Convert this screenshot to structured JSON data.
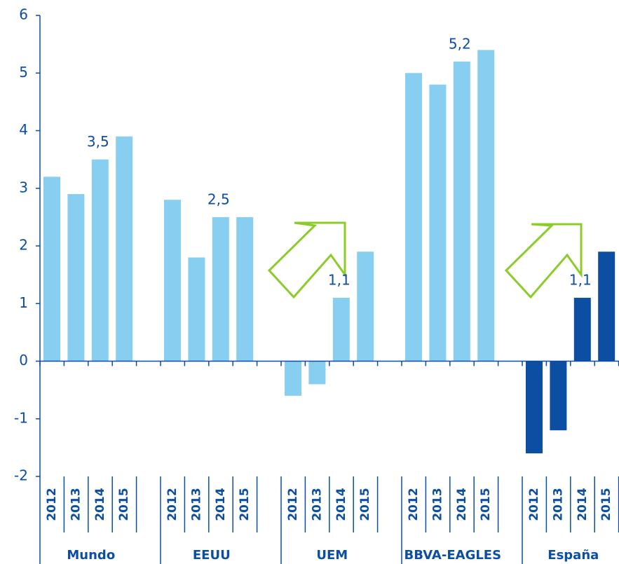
{
  "chart_data": {
    "type": "grouped_bar",
    "categories": [
      "2012",
      "2013",
      "2014",
      "2015"
    ],
    "groups": [
      {
        "name": "Mundo",
        "color": "#87cef0",
        "values": [
          3.2,
          2.9,
          3.5,
          3.9
        ],
        "value_labels": [
          null,
          null,
          "3,5",
          null
        ]
      },
      {
        "name": "EEUU",
        "color": "#87cef0",
        "values": [
          2.8,
          1.8,
          2.5,
          2.5
        ],
        "value_labels": [
          null,
          null,
          "2,5",
          null
        ]
      },
      {
        "name": "UEM",
        "color": "#87cef0",
        "values": [
          -0.6,
          -0.4,
          1.1,
          1.9
        ],
        "value_labels": [
          null,
          null,
          "1,1",
          null
        ]
      },
      {
        "name": "BBVA-EAGLES",
        "color": "#87cef0",
        "values": [
          5.0,
          4.8,
          5.2,
          5.4
        ],
        "value_labels": [
          null,
          null,
          "5,2",
          null
        ]
      },
      {
        "name": "España",
        "color": "#0b4ea2",
        "values": [
          -1.6,
          -1.2,
          1.1,
          1.9
        ],
        "value_labels": [
          null,
          null,
          "1,1",
          null
        ]
      }
    ],
    "ylim": [
      -2,
      6
    ],
    "yticks": [
      -2,
      -1,
      0,
      1,
      2,
      3,
      4,
      5,
      6
    ]
  }
}
